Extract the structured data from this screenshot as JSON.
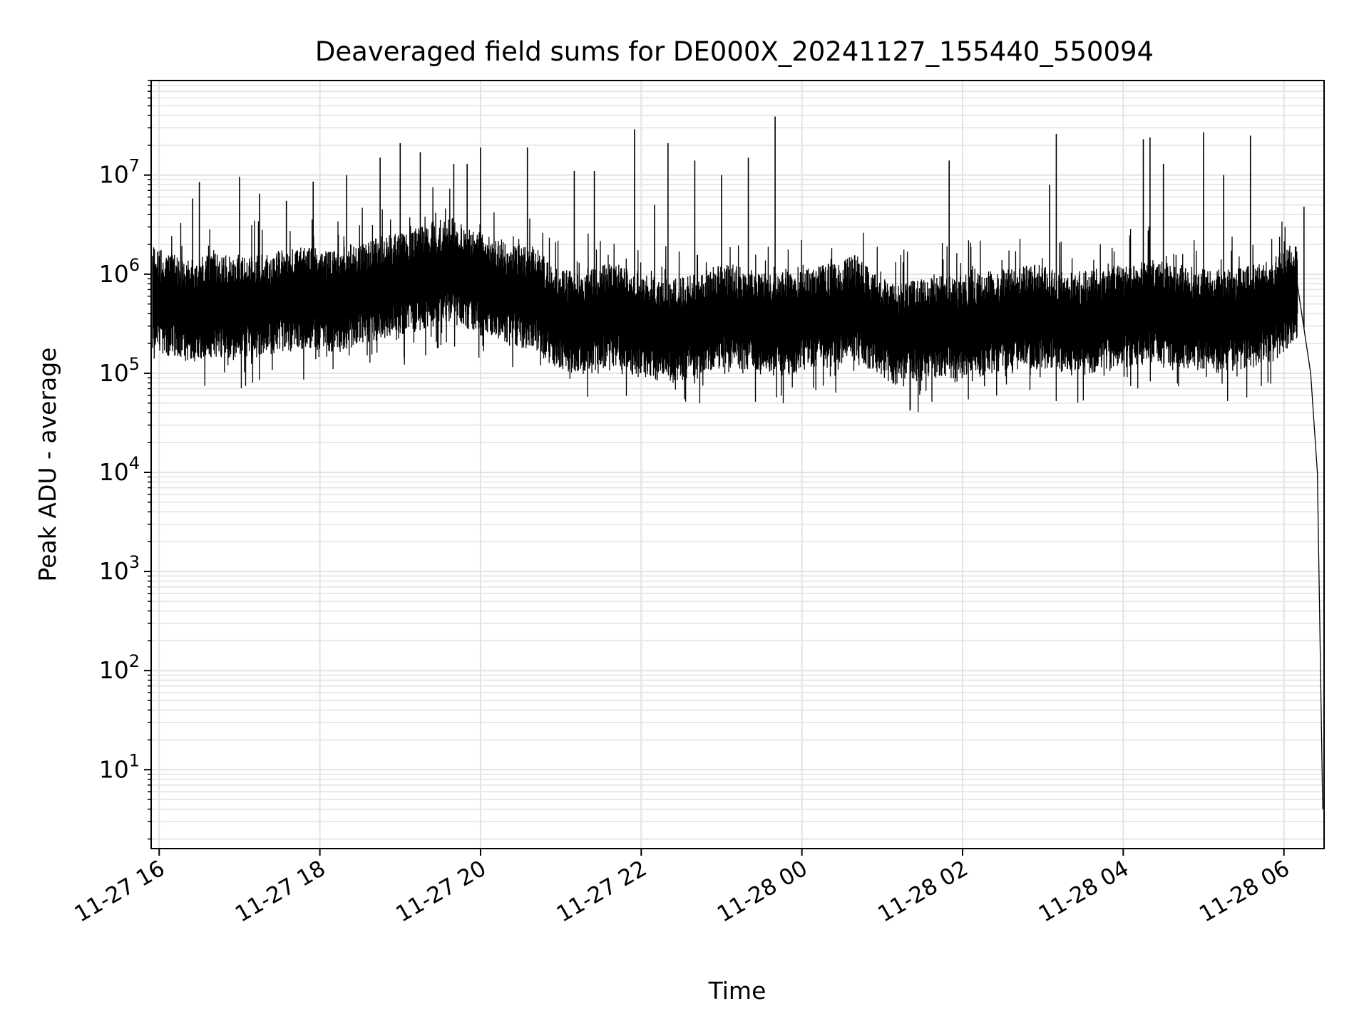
{
  "chart_data": {
    "type": "line",
    "title": "Deaveraged field sums for DE000X_20241127_155440_550094",
    "xlabel": "Time",
    "ylabel": "Peak ADU - average",
    "yscale": "log",
    "grid": true,
    "xticks": [
      "11-27 16",
      "11-27 18",
      "11-27 20",
      "11-27 22",
      "11-28 00",
      "11-28 02",
      "11-28 04",
      "11-28 06"
    ],
    "yticks": [
      {
        "base": "10",
        "exp": "1"
      },
      {
        "base": "10",
        "exp": "2"
      },
      {
        "base": "10",
        "exp": "3"
      },
      {
        "base": "10",
        "exp": "4"
      },
      {
        "base": "10",
        "exp": "5"
      },
      {
        "base": "10",
        "exp": "6"
      },
      {
        "base": "10",
        "exp": "7"
      }
    ],
    "xlim": [
      "2024-11-27 15:54",
      "2024-11-28 06:30"
    ],
    "ylim": [
      1.6,
      90000000
    ],
    "line_color": "#000000",
    "grid_color": "#e3e3e3",
    "series": [
      {
        "values": [
          [
            "2024-11-27 15:55",
            600000
          ],
          [
            "2024-11-27 16:10",
            500000
          ],
          [
            "2024-11-27 16:25",
            450000
          ],
          [
            "2024-11-27 16:40",
            520000
          ],
          [
            "2024-11-27 16:55",
            480000
          ],
          [
            "2024-11-27 17:10",
            500000
          ],
          [
            "2024-11-27 17:25",
            550000
          ],
          [
            "2024-11-27 17:40",
            580000
          ],
          [
            "2024-11-27 17:55",
            600000
          ],
          [
            "2024-11-27 18:10",
            550000
          ],
          [
            "2024-11-27 18:25",
            650000
          ],
          [
            "2024-11-27 18:40",
            750000
          ],
          [
            "2024-11-27 18:55",
            800000
          ],
          [
            "2024-11-27 19:10",
            900000
          ],
          [
            "2024-11-27 19:25",
            1100000
          ],
          [
            "2024-11-27 19:40",
            1200000
          ],
          [
            "2024-11-27 19:55",
            900000
          ],
          [
            "2024-11-27 20:10",
            750000
          ],
          [
            "2024-11-27 20:25",
            650000
          ],
          [
            "2024-11-27 20:40",
            600000
          ],
          [
            "2024-11-27 20:55",
            400000
          ],
          [
            "2024-11-27 21:10",
            350000
          ],
          [
            "2024-11-27 21:25",
            380000
          ],
          [
            "2024-11-27 21:40",
            420000
          ],
          [
            "2024-11-27 21:55",
            330000
          ],
          [
            "2024-11-27 22:10",
            300000
          ],
          [
            "2024-11-27 22:25",
            280000
          ],
          [
            "2024-11-27 22:40",
            330000
          ],
          [
            "2024-11-27 22:55",
            380000
          ],
          [
            "2024-11-27 23:10",
            400000
          ],
          [
            "2024-11-27 23:25",
            350000
          ],
          [
            "2024-11-27 23:40",
            330000
          ],
          [
            "2024-11-27 23:55",
            350000
          ],
          [
            "2024-11-28 00:10",
            380000
          ],
          [
            "2024-11-28 00:25",
            420000
          ],
          [
            "2024-11-28 00:40",
            500000
          ],
          [
            "2024-11-28 00:55",
            330000
          ],
          [
            "2024-11-28 01:10",
            250000
          ],
          [
            "2024-11-28 01:25",
            280000
          ],
          [
            "2024-11-28 01:40",
            320000
          ],
          [
            "2024-11-28 01:55",
            300000
          ],
          [
            "2024-11-28 02:10",
            320000
          ],
          [
            "2024-11-28 02:25",
            350000
          ],
          [
            "2024-11-28 02:40",
            380000
          ],
          [
            "2024-11-28 02:55",
            400000
          ],
          [
            "2024-11-28 03:10",
            350000
          ],
          [
            "2024-11-28 03:25",
            330000
          ],
          [
            "2024-11-28 03:40",
            360000
          ],
          [
            "2024-11-28 03:55",
            400000
          ],
          [
            "2024-11-28 04:10",
            420000
          ],
          [
            "2024-11-28 04:25",
            450000
          ],
          [
            "2024-11-28 04:40",
            400000
          ],
          [
            "2024-11-28 04:55",
            380000
          ],
          [
            "2024-11-28 05:10",
            350000
          ],
          [
            "2024-11-28 05:25",
            380000
          ],
          [
            "2024-11-28 05:40",
            400000
          ],
          [
            "2024-11-28 05:55",
            500000
          ],
          [
            "2024-11-28 06:10",
            800000
          ],
          [
            "2024-11-28 06:20",
            100000
          ],
          [
            "2024-11-28 06:25",
            10000
          ],
          [
            "2024-11-28 06:29",
            4
          ]
        ]
      }
    ],
    "spikes": [
      [
        "2024-11-27 16:25",
        5800000
      ],
      [
        "2024-11-27 16:30",
        8500000
      ],
      [
        "2024-11-27 17:00",
        9600000
      ],
      [
        "2024-11-27 17:15",
        6500000
      ],
      [
        "2024-11-27 17:35",
        5500000
      ],
      [
        "2024-11-27 17:55",
        8600000
      ],
      [
        "2024-11-27 18:20",
        10000000
      ],
      [
        "2024-11-27 18:45",
        15000000
      ],
      [
        "2024-11-27 19:00",
        21000000
      ],
      [
        "2024-11-27 19:15",
        17000000
      ],
      [
        "2024-11-27 19:40",
        13000000
      ],
      [
        "2024-11-27 19:50",
        13000000
      ],
      [
        "2024-11-27 20:00",
        19000000
      ],
      [
        "2024-11-27 20:35",
        19000000
      ],
      [
        "2024-11-27 21:10",
        11000000
      ],
      [
        "2024-11-27 21:25",
        11000000
      ],
      [
        "2024-11-27 21:55",
        29000000
      ],
      [
        "2024-11-27 22:10",
        5000000
      ],
      [
        "2024-11-27 22:20",
        21000000
      ],
      [
        "2024-11-27 22:40",
        14000000
      ],
      [
        "2024-11-27 23:00",
        10000000
      ],
      [
        "2024-11-27 23:20",
        15000000
      ],
      [
        "2024-11-27 23:40",
        39000000
      ],
      [
        "2024-11-28 01:50",
        14000000
      ],
      [
        "2024-11-28 03:05",
        8000000
      ],
      [
        "2024-11-28 03:10",
        26000000
      ],
      [
        "2024-11-28 04:15",
        23000000
      ],
      [
        "2024-11-28 04:20",
        24000000
      ],
      [
        "2024-11-28 04:30",
        13000000
      ],
      [
        "2024-11-28 05:00",
        27000000
      ],
      [
        "2024-11-28 05:15",
        10000000
      ],
      [
        "2024-11-28 05:35",
        25000000
      ],
      [
        "2024-11-28 06:15",
        4800000
      ]
    ]
  }
}
